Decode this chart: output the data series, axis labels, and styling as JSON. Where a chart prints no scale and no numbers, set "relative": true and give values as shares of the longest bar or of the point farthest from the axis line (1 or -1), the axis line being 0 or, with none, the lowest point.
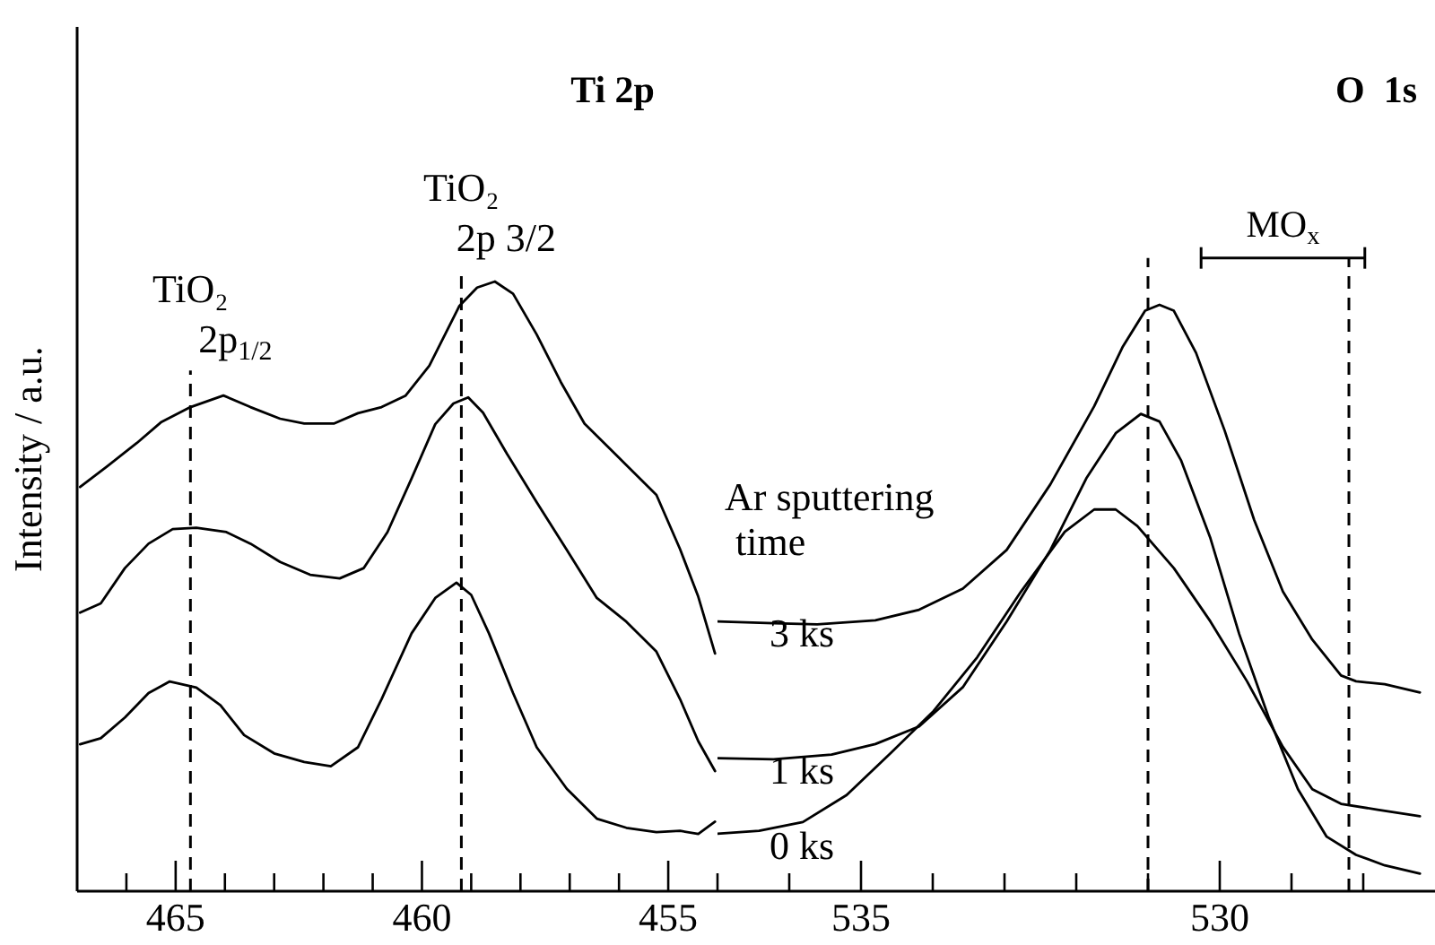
{
  "chart_data": [
    {
      "type": "line",
      "relative": true,
      "title": "Ti 2p",
      "ylabel": "Intensity / a.u.",
      "xlim": [
        467,
        454
      ],
      "xticks": [
        {
          "value": 466,
          "label": null
        },
        465,
        {
          "value": 464,
          "label": null
        },
        {
          "value": 463,
          "label": null
        },
        {
          "value": 462,
          "label": null
        },
        {
          "value": 461,
          "label": null
        },
        460,
        {
          "value": 459,
          "label": null
        },
        {
          "value": 458,
          "label": null
        },
        {
          "value": 457,
          "label": null
        },
        {
          "value": 456,
          "label": null
        },
        455,
        {
          "value": 454,
          "label": null
        }
      ],
      "ref_lines": [
        {
          "axis": "x",
          "value": 464.7,
          "label": "TiO₂\n2p$_{1/2}$",
          "line_style": "dashed"
        },
        {
          "axis": "x",
          "value": 459.2,
          "label": "TiO₂\n2p 3/2",
          "line_style": "dashed"
        }
      ],
      "series": [
        {
          "color": "#000000",
          "x": [
            466.94,
            466.39,
            465.79,
            465.3,
            464.7,
            464.03,
            463.48,
            462.88,
            462.39,
            461.79,
            461.3,
            460.82,
            460.33,
            459.85,
            459.24,
            458.88,
            458.52,
            458.15,
            457.67,
            457.18,
            456.7,
            455.85,
            455.24,
            454.76,
            454.39,
            454.05
          ],
          "values": [
            0.663,
            0.697,
            0.735,
            0.769,
            0.794,
            0.813,
            0.794,
            0.775,
            0.767,
            0.767,
            0.784,
            0.794,
            0.813,
            0.862,
            0.96,
            0.99,
            1.0,
            0.98,
            0.913,
            0.835,
            0.767,
            0.699,
            0.65,
            0.561,
            0.483,
            0.39
          ]
        },
        {
          "color": "#000000",
          "x": [
            466.94,
            466.52,
            466.03,
            465.55,
            465.06,
            464.58,
            463.97,
            463.48,
            462.88,
            462.27,
            461.67,
            461.18,
            460.7,
            460.21,
            459.73,
            459.36,
            459.06,
            458.76,
            458.27,
            457.67,
            457.06,
            456.45,
            455.85,
            455.24,
            454.76,
            454.39,
            454.05
          ],
          "values": [
            0.457,
            0.472,
            0.53,
            0.57,
            0.594,
            0.596,
            0.589,
            0.57,
            0.54,
            0.519,
            0.513,
            0.53,
            0.589,
            0.677,
            0.766,
            0.8,
            0.81,
            0.785,
            0.717,
            0.638,
            0.56,
            0.481,
            0.442,
            0.393,
            0.315,
            0.246,
            0.197
          ]
        },
        {
          "color": "#000000",
          "x": [
            466.94,
            466.52,
            466.03,
            465.55,
            465.12,
            464.58,
            464.09,
            463.61,
            463.0,
            462.39,
            461.85,
            461.3,
            460.82,
            460.21,
            459.73,
            459.3,
            459.0,
            458.64,
            458.15,
            457.67,
            457.06,
            456.45,
            455.85,
            455.24,
            454.76,
            454.39,
            454.05
          ],
          "values": [
            0.241,
            0.251,
            0.285,
            0.325,
            0.344,
            0.334,
            0.305,
            0.256,
            0.226,
            0.212,
            0.205,
            0.236,
            0.315,
            0.423,
            0.481,
            0.506,
            0.486,
            0.423,
            0.325,
            0.236,
            0.168,
            0.119,
            0.104,
            0.097,
            0.099,
            0.094,
            0.114
          ]
        }
      ]
    },
    {
      "type": "line",
      "relative": true,
      "title": "O  1s",
      "legend_title": "Ar sputtering time",
      "annotations": [
        "MO$_{x}$"
      ],
      "xlim": [
        537,
        527
      ],
      "xticks": [
        {
          "value": 536,
          "label": null
        },
        535,
        {
          "value": 534,
          "label": null
        },
        {
          "value": 533,
          "label": null
        },
        {
          "value": 532,
          "label": null
        },
        {
          "value": 531,
          "label": null
        },
        530,
        {
          "value": 529,
          "label": null
        },
        {
          "value": 528,
          "label": null
        }
      ],
      "ref_lines": [
        {
          "axis": "x",
          "value": 531.0,
          "line_style": "dashed"
        },
        {
          "axis": "x",
          "value": 528.2,
          "line_style": "dashed"
        }
      ],
      "series": [
        {
          "name": "3 ks",
          "color": "#000000",
          "x": [
            537.0,
            536.22,
            535.61,
            534.8,
            534.19,
            533.58,
            532.97,
            532.36,
            531.75,
            531.35,
            531.04,
            530.84,
            530.64,
            530.33,
            529.93,
            529.52,
            529.12,
            528.71,
            528.31,
            528.1,
            527.7,
            527.21
          ],
          "values": [
            0.46,
            0.457,
            0.455,
            0.462,
            0.48,
            0.516,
            0.582,
            0.694,
            0.827,
            0.929,
            0.99,
            1.0,
            0.99,
            0.918,
            0.785,
            0.633,
            0.511,
            0.429,
            0.368,
            0.358,
            0.353,
            0.339
          ]
        },
        {
          "name": "1 ks",
          "color": "#000000",
          "x": [
            537.0,
            536.22,
            535.41,
            534.8,
            534.19,
            533.58,
            532.97,
            532.36,
            531.86,
            531.45,
            531.1,
            530.84,
            530.54,
            530.13,
            529.73,
            529.32,
            528.91,
            528.51,
            528.1,
            527.7,
            527.21
          ],
          "values": [
            0.227,
            0.225,
            0.233,
            0.251,
            0.281,
            0.348,
            0.46,
            0.582,
            0.704,
            0.781,
            0.814,
            0.801,
            0.735,
            0.602,
            0.439,
            0.297,
            0.174,
            0.093,
            0.062,
            0.044,
            0.03
          ]
        },
        {
          "name": "0 ks",
          "color": "#000000",
          "x": [
            537.0,
            536.42,
            535.81,
            535.2,
            534.59,
            533.99,
            533.38,
            532.77,
            532.16,
            531.75,
            531.45,
            531.15,
            530.64,
            530.13,
            529.62,
            529.12,
            528.71,
            528.31,
            527.8,
            527.21
          ],
          "values": [
            0.098,
            0.103,
            0.118,
            0.164,
            0.235,
            0.307,
            0.399,
            0.511,
            0.613,
            0.651,
            0.651,
            0.623,
            0.551,
            0.46,
            0.358,
            0.246,
            0.174,
            0.149,
            0.139,
            0.128
          ]
        }
      ]
    }
  ]
}
